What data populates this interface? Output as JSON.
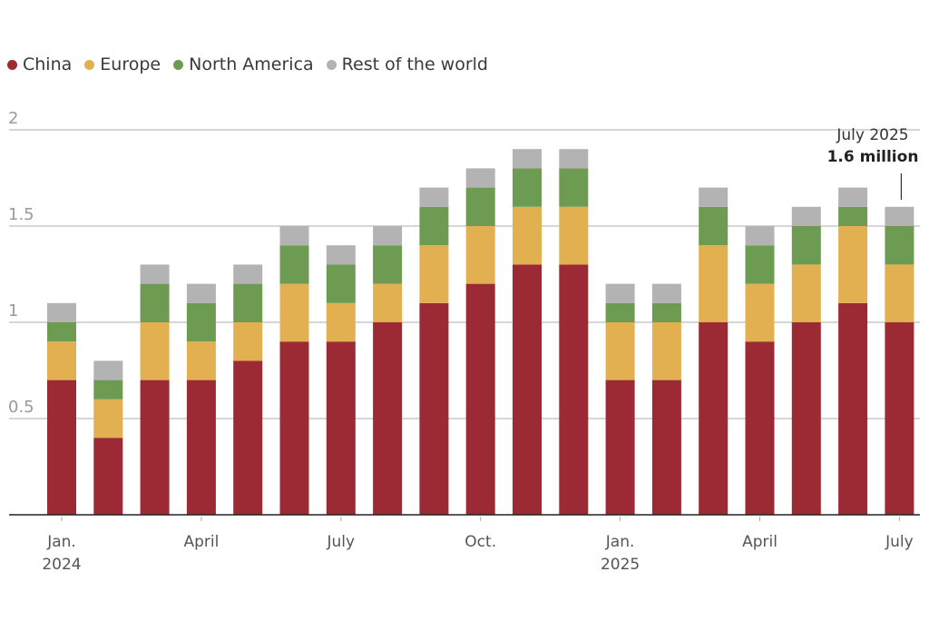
{
  "chart_data": {
    "type": "bar",
    "stacked": true,
    "title": "",
    "xlabel": "",
    "ylabel": "",
    "ylim": [
      0,
      2
    ],
    "yticks": [
      0.5,
      1,
      1.5,
      2
    ],
    "ytick_labels": [
      "0.5",
      "1",
      "1.5",
      "2"
    ],
    "grid": true,
    "legend_position": "top-left",
    "categories": [
      "2024-01",
      "2024-02",
      "2024-03",
      "2024-04",
      "2024-05",
      "2024-06",
      "2024-07",
      "2024-08",
      "2024-09",
      "2024-10",
      "2024-11",
      "2024-12",
      "2025-01",
      "2025-02",
      "2025-03",
      "2025-04",
      "2025-05",
      "2025-06",
      "2025-07"
    ],
    "xtick_labels": [
      {
        "index": 0,
        "lines": [
          "Jan.",
          "2024"
        ]
      },
      {
        "index": 3,
        "lines": [
          "April"
        ]
      },
      {
        "index": 6,
        "lines": [
          "July"
        ]
      },
      {
        "index": 9,
        "lines": [
          "Oct."
        ]
      },
      {
        "index": 12,
        "lines": [
          "Jan.",
          "2025"
        ]
      },
      {
        "index": 15,
        "lines": [
          "April"
        ]
      },
      {
        "index": 18,
        "lines": [
          "July"
        ]
      }
    ],
    "series": [
      {
        "name": "China",
        "color": "#9b2a35",
        "values": [
          0.7,
          0.4,
          0.7,
          0.7,
          0.8,
          0.9,
          0.9,
          1.0,
          1.1,
          1.2,
          1.3,
          1.3,
          0.7,
          0.7,
          1.0,
          0.9,
          1.0,
          1.1,
          1.0
        ]
      },
      {
        "name": "Europe",
        "color": "#e3b051",
        "values": [
          0.2,
          0.2,
          0.3,
          0.2,
          0.2,
          0.3,
          0.2,
          0.2,
          0.3,
          0.3,
          0.3,
          0.3,
          0.3,
          0.3,
          0.4,
          0.3,
          0.3,
          0.4,
          0.3
        ]
      },
      {
        "name": "North America",
        "color": "#6e9b52",
        "values": [
          0.1,
          0.1,
          0.2,
          0.2,
          0.2,
          0.2,
          0.2,
          0.2,
          0.2,
          0.2,
          0.2,
          0.2,
          0.1,
          0.1,
          0.2,
          0.2,
          0.2,
          0.1,
          0.2
        ]
      },
      {
        "name": "Rest of the world",
        "color": "#b3b3b3",
        "values": [
          0.1,
          0.1,
          0.1,
          0.1,
          0.1,
          0.1,
          0.1,
          0.1,
          0.1,
          0.1,
          0.1,
          0.1,
          0.1,
          0.1,
          0.1,
          0.1,
          0.1,
          0.1,
          0.1
        ]
      }
    ],
    "annotation": {
      "index": 18,
      "label": "July 2025",
      "value_text": "1.6 million"
    }
  }
}
